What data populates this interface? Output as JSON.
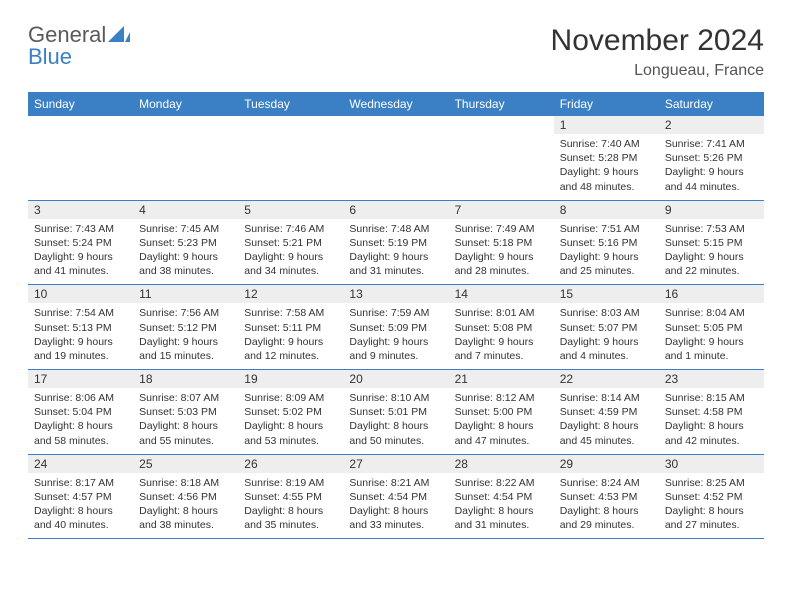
{
  "brand": {
    "name_a": "General",
    "name_b": "Blue",
    "color_a": "#5a5a5a",
    "color_b": "#3b7fc4"
  },
  "title": {
    "month_year": "November 2024",
    "location": "Longueau, France"
  },
  "colors": {
    "header_bg": "#3b7fc4",
    "header_fg": "#ffffff",
    "daynum_bg": "#eeeeee",
    "border": "#3b7fc4",
    "page_bg": "#ffffff",
    "text": "#333333"
  },
  "layout": {
    "columns": 7,
    "rows": 5
  },
  "day_headers": [
    "Sunday",
    "Monday",
    "Tuesday",
    "Wednesday",
    "Thursday",
    "Friday",
    "Saturday"
  ],
  "weeks": [
    [
      null,
      null,
      null,
      null,
      null,
      {
        "n": "1",
        "sunrise": "Sunrise: 7:40 AM",
        "sunset": "Sunset: 5:28 PM",
        "daylight": "Daylight: 9 hours and 48 minutes."
      },
      {
        "n": "2",
        "sunrise": "Sunrise: 7:41 AM",
        "sunset": "Sunset: 5:26 PM",
        "daylight": "Daylight: 9 hours and 44 minutes."
      }
    ],
    [
      {
        "n": "3",
        "sunrise": "Sunrise: 7:43 AM",
        "sunset": "Sunset: 5:24 PM",
        "daylight": "Daylight: 9 hours and 41 minutes."
      },
      {
        "n": "4",
        "sunrise": "Sunrise: 7:45 AM",
        "sunset": "Sunset: 5:23 PM",
        "daylight": "Daylight: 9 hours and 38 minutes."
      },
      {
        "n": "5",
        "sunrise": "Sunrise: 7:46 AM",
        "sunset": "Sunset: 5:21 PM",
        "daylight": "Daylight: 9 hours and 34 minutes."
      },
      {
        "n": "6",
        "sunrise": "Sunrise: 7:48 AM",
        "sunset": "Sunset: 5:19 PM",
        "daylight": "Daylight: 9 hours and 31 minutes."
      },
      {
        "n": "7",
        "sunrise": "Sunrise: 7:49 AM",
        "sunset": "Sunset: 5:18 PM",
        "daylight": "Daylight: 9 hours and 28 minutes."
      },
      {
        "n": "8",
        "sunrise": "Sunrise: 7:51 AM",
        "sunset": "Sunset: 5:16 PM",
        "daylight": "Daylight: 9 hours and 25 minutes."
      },
      {
        "n": "9",
        "sunrise": "Sunrise: 7:53 AM",
        "sunset": "Sunset: 5:15 PM",
        "daylight": "Daylight: 9 hours and 22 minutes."
      }
    ],
    [
      {
        "n": "10",
        "sunrise": "Sunrise: 7:54 AM",
        "sunset": "Sunset: 5:13 PM",
        "daylight": "Daylight: 9 hours and 19 minutes."
      },
      {
        "n": "11",
        "sunrise": "Sunrise: 7:56 AM",
        "sunset": "Sunset: 5:12 PM",
        "daylight": "Daylight: 9 hours and 15 minutes."
      },
      {
        "n": "12",
        "sunrise": "Sunrise: 7:58 AM",
        "sunset": "Sunset: 5:11 PM",
        "daylight": "Daylight: 9 hours and 12 minutes."
      },
      {
        "n": "13",
        "sunrise": "Sunrise: 7:59 AM",
        "sunset": "Sunset: 5:09 PM",
        "daylight": "Daylight: 9 hours and 9 minutes."
      },
      {
        "n": "14",
        "sunrise": "Sunrise: 8:01 AM",
        "sunset": "Sunset: 5:08 PM",
        "daylight": "Daylight: 9 hours and 7 minutes."
      },
      {
        "n": "15",
        "sunrise": "Sunrise: 8:03 AM",
        "sunset": "Sunset: 5:07 PM",
        "daylight": "Daylight: 9 hours and 4 minutes."
      },
      {
        "n": "16",
        "sunrise": "Sunrise: 8:04 AM",
        "sunset": "Sunset: 5:05 PM",
        "daylight": "Daylight: 9 hours and 1 minute."
      }
    ],
    [
      {
        "n": "17",
        "sunrise": "Sunrise: 8:06 AM",
        "sunset": "Sunset: 5:04 PM",
        "daylight": "Daylight: 8 hours and 58 minutes."
      },
      {
        "n": "18",
        "sunrise": "Sunrise: 8:07 AM",
        "sunset": "Sunset: 5:03 PM",
        "daylight": "Daylight: 8 hours and 55 minutes."
      },
      {
        "n": "19",
        "sunrise": "Sunrise: 8:09 AM",
        "sunset": "Sunset: 5:02 PM",
        "daylight": "Daylight: 8 hours and 53 minutes."
      },
      {
        "n": "20",
        "sunrise": "Sunrise: 8:10 AM",
        "sunset": "Sunset: 5:01 PM",
        "daylight": "Daylight: 8 hours and 50 minutes."
      },
      {
        "n": "21",
        "sunrise": "Sunrise: 8:12 AM",
        "sunset": "Sunset: 5:00 PM",
        "daylight": "Daylight: 8 hours and 47 minutes."
      },
      {
        "n": "22",
        "sunrise": "Sunrise: 8:14 AM",
        "sunset": "Sunset: 4:59 PM",
        "daylight": "Daylight: 8 hours and 45 minutes."
      },
      {
        "n": "23",
        "sunrise": "Sunrise: 8:15 AM",
        "sunset": "Sunset: 4:58 PM",
        "daylight": "Daylight: 8 hours and 42 minutes."
      }
    ],
    [
      {
        "n": "24",
        "sunrise": "Sunrise: 8:17 AM",
        "sunset": "Sunset: 4:57 PM",
        "daylight": "Daylight: 8 hours and 40 minutes."
      },
      {
        "n": "25",
        "sunrise": "Sunrise: 8:18 AM",
        "sunset": "Sunset: 4:56 PM",
        "daylight": "Daylight: 8 hours and 38 minutes."
      },
      {
        "n": "26",
        "sunrise": "Sunrise: 8:19 AM",
        "sunset": "Sunset: 4:55 PM",
        "daylight": "Daylight: 8 hours and 35 minutes."
      },
      {
        "n": "27",
        "sunrise": "Sunrise: 8:21 AM",
        "sunset": "Sunset: 4:54 PM",
        "daylight": "Daylight: 8 hours and 33 minutes."
      },
      {
        "n": "28",
        "sunrise": "Sunrise: 8:22 AM",
        "sunset": "Sunset: 4:54 PM",
        "daylight": "Daylight: 8 hours and 31 minutes."
      },
      {
        "n": "29",
        "sunrise": "Sunrise: 8:24 AM",
        "sunset": "Sunset: 4:53 PM",
        "daylight": "Daylight: 8 hours and 29 minutes."
      },
      {
        "n": "30",
        "sunrise": "Sunrise: 8:25 AM",
        "sunset": "Sunset: 4:52 PM",
        "daylight": "Daylight: 8 hours and 27 minutes."
      }
    ]
  ]
}
